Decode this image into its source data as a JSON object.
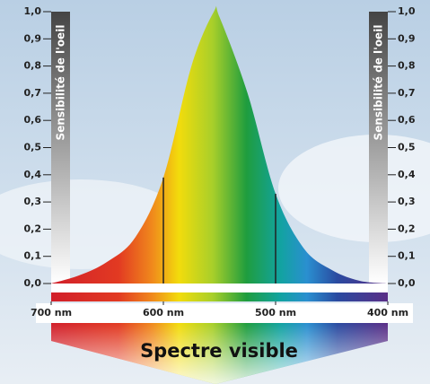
{
  "chart_data": {
    "type": "area",
    "y_label": "Sensibilité de l'oeil",
    "y2_label": "Sensibilité de l'oeil",
    "caption": "Spectre visible",
    "x": [
      400,
      425,
      450,
      475,
      500,
      525,
      550,
      555,
      575,
      600,
      625,
      650,
      675,
      700
    ],
    "values": [
      0.0,
      0.01,
      0.05,
      0.13,
      0.33,
      0.7,
      0.98,
      1.0,
      0.8,
      0.39,
      0.17,
      0.08,
      0.03,
      0.0
    ],
    "vlines": [
      600,
      500
    ],
    "xlim": [
      700,
      400
    ],
    "xticks": [
      {
        "value": 700,
        "label": "700 nm"
      },
      {
        "value": 600,
        "label": "600 nm"
      },
      {
        "value": 500,
        "label": "500 nm"
      },
      {
        "value": 400,
        "label": "400 nm"
      }
    ],
    "ylim": [
      0,
      1
    ],
    "yticks": [
      {
        "value": 0,
        "label": "0,0"
      },
      {
        "value": 0.1,
        "label": "0,1"
      },
      {
        "value": 0.2,
        "label": "0,2"
      },
      {
        "value": 0.3,
        "label": "0,3"
      },
      {
        "value": 0.4,
        "label": "0,4"
      },
      {
        "value": 0.5,
        "label": "0,5"
      },
      {
        "value": 0.6,
        "label": "0,6"
      },
      {
        "value": 0.7,
        "label": "0,7"
      },
      {
        "value": 0.8,
        "label": "0,8"
      },
      {
        "value": 0.9,
        "label": "0,9"
      },
      {
        "value": 1,
        "label": "1,0"
      }
    ],
    "y2lim": [
      0,
      1
    ],
    "y2ticks": [
      {
        "value": 0,
        "label": "0,0"
      },
      {
        "value": 0.1,
        "label": "0,1"
      },
      {
        "value": 0.2,
        "label": "0,2"
      },
      {
        "value": 0.3,
        "label": "0,3"
      },
      {
        "value": 0.4,
        "label": "0,4"
      },
      {
        "value": 0.5,
        "label": "0,5"
      },
      {
        "value": 0.6,
        "label": "0,6"
      },
      {
        "value": 0.7,
        "label": "0,7"
      },
      {
        "value": 0.8,
        "label": "0,8"
      },
      {
        "value": 0.9,
        "label": "0,9"
      },
      {
        "value": 1,
        "label": "1,0"
      }
    ]
  }
}
